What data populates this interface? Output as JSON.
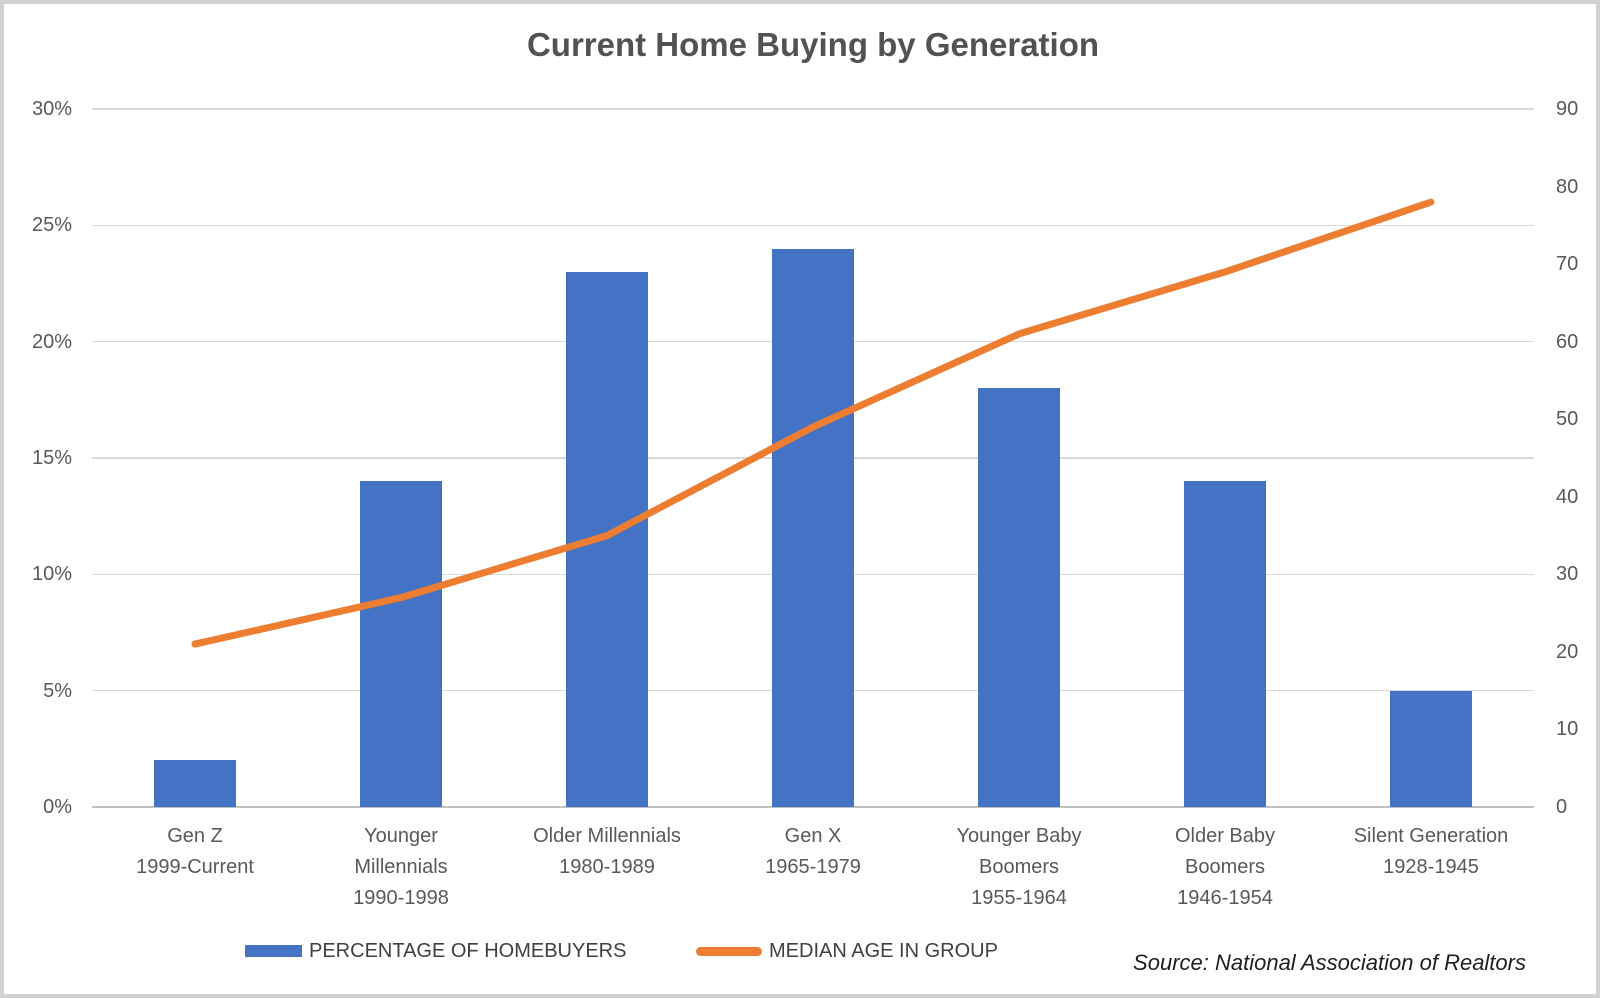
{
  "title": "Current Home Buying by Generation",
  "source_note": "Source: National Association of Realtors",
  "colors": {
    "bar": "#4472C4",
    "line": "#ED7D31",
    "gridline": "#D9D9D9",
    "axis_line": "#BFBFBF",
    "tick_text": "#595959",
    "title_text": "#525252",
    "legend_text": "#404040",
    "source_text": "#1F1F1F",
    "frame_border": "#D2D2D2"
  },
  "legend": [
    {
      "label": "PERCENTAGE OF HOMEBUYERS",
      "swatch": "bar"
    },
    {
      "label": "MEDIAN AGE IN GROUP",
      "swatch": "line"
    }
  ],
  "chart_data": {
    "type": "bar",
    "subtype": "combo-bar-line-dual-axis",
    "title": "Current Home Buying by Generation",
    "categories": [
      [
        "Gen Z",
        "1999-Current"
      ],
      [
        "Younger",
        "Millennials",
        "1990-1998"
      ],
      [
        "Older Millennials",
        "1980-1989"
      ],
      [
        "Gen X",
        "1965-1979"
      ],
      [
        "Younger Baby",
        "Boomers",
        "1955-1964"
      ],
      [
        "Older Baby",
        "Boomers",
        "1946-1954"
      ],
      [
        "Silent Generation",
        "1928-1945"
      ]
    ],
    "series": [
      {
        "name": "PERCENTAGE OF HOMEBUYERS",
        "type": "bar",
        "axis": "left",
        "unit": "%",
        "values": [
          2,
          14,
          23,
          24,
          18,
          14,
          5
        ]
      },
      {
        "name": "MEDIAN AGE IN GROUP",
        "type": "line",
        "axis": "right",
        "unit": "years",
        "values": [
          21,
          27,
          35,
          49,
          61,
          69,
          78
        ]
      }
    ],
    "left_axis": {
      "min": 0,
      "max": 30,
      "step": 5,
      "tick_labels": [
        "0%",
        "5%",
        "10%",
        "15%",
        "20%",
        "25%",
        "30%"
      ]
    },
    "right_axis": {
      "min": 0,
      "max": 90,
      "step": 10,
      "tick_labels": [
        "0",
        "10",
        "20",
        "30",
        "40",
        "50",
        "60",
        "70",
        "80",
        "90"
      ]
    },
    "grid": true,
    "legend_position": "bottom"
  }
}
